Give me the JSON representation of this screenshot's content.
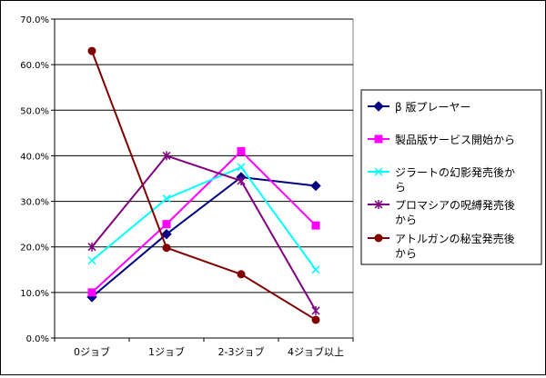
{
  "chart_data": {
    "type": "line",
    "title": "",
    "xlabel": "",
    "ylabel": "",
    "categories": [
      "0ジョブ",
      "1ジョブ",
      "2-3ジョブ",
      "4ジョブ以上"
    ],
    "ylim": [
      0,
      70
    ],
    "ytick_labels": [
      "0.0%",
      "10.0%",
      "20.0%",
      "30.0%",
      "40.0%",
      "50.0%",
      "60.0%",
      "70.0%"
    ],
    "grid": "horizontal",
    "legend_position": "right",
    "series": [
      {
        "name": "β 版プレーヤー",
        "color": "#000080",
        "marker": "diamond",
        "values": [
          9.0,
          22.8,
          35.3,
          33.4
        ]
      },
      {
        "name": "製品版サービス開始から",
        "color": "#ff00ff",
        "marker": "square",
        "values": [
          10.0,
          25.0,
          41.0,
          24.7
        ]
      },
      {
        "name": "ジラートの幻影発売後から",
        "color": "#00ffff",
        "marker": "x",
        "values": [
          17.0,
          30.6,
          37.5,
          15.0
        ]
      },
      {
        "name": "プロマシアの呪縛発売後から",
        "color": "#800080",
        "marker": "asterisk",
        "values": [
          20.0,
          40.0,
          34.5,
          6.0
        ]
      },
      {
        "name": "アトルガンの秘宝発売後から",
        "color": "#800000",
        "marker": "circle",
        "values": [
          63.0,
          19.8,
          14.0,
          4.0
        ]
      }
    ]
  }
}
